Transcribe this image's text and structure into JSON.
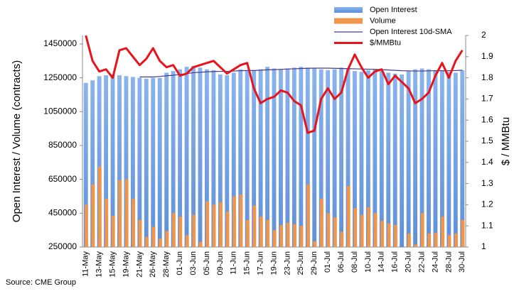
{
  "chart_data": {
    "type": "combo",
    "source": "Source: CME Group",
    "y_label": "Open Interest / Volume (contracts)",
    "y2_label": "$ / MMBtu",
    "categories": [
      "11-May",
      null,
      "13-May",
      null,
      "15-May",
      null,
      "19-May",
      null,
      "21-May",
      null,
      "26-May",
      null,
      "28-May",
      null,
      "01-Jun",
      null,
      "03-Jun",
      null,
      "05-Jun",
      null,
      "09-Jun",
      null,
      "11-Jun",
      null,
      "15-Jun",
      null,
      "17-Jun",
      null,
      "19-Jun",
      null,
      "23-Jun",
      null,
      "25-Jun",
      null,
      "29-Jun",
      null,
      "01-Jul",
      null,
      "06-Jul",
      null,
      "08-Jul",
      null,
      "10-Jul",
      null,
      "14-Jul",
      null,
      "16-Jul",
      null,
      "20-Jul",
      null,
      "22-Jul",
      null,
      "24-Jul",
      null,
      "28-Jul",
      null,
      "30-Jul"
    ],
    "ylim": [
      250000,
      1500000
    ],
    "yticks": [
      250000,
      450000,
      650000,
      850000,
      1050000,
      1250000,
      1450000
    ],
    "y2lim": [
      1,
      2
    ],
    "y2ticks": [
      1,
      1.1,
      1.2,
      1.3,
      1.4,
      1.5,
      1.6,
      1.7,
      1.8,
      1.9,
      2
    ],
    "series": [
      {
        "name": "Open Interest",
        "type": "bar",
        "color": "#6f9fe0",
        "values": [
          1220000,
          1235000,
          1260000,
          1265000,
          1270000,
          1265000,
          1260000,
          1255000,
          1250000,
          1245000,
          1250000,
          1250000,
          1280000,
          1290000,
          1300000,
          1315000,
          1320000,
          1310000,
          1300000,
          1295000,
          1270000,
          1265000,
          1280000,
          1300000,
          1290000,
          1295000,
          1300000,
          1315000,
          1305000,
          1300000,
          1305000,
          1310000,
          1315000,
          1310000,
          1305000,
          1300000,
          1295000,
          1300000,
          1310000,
          1305000,
          1290000,
          1285000,
          1295000,
          1300000,
          1290000,
          1280000,
          1275000,
          1270000,
          1290000,
          1300000,
          1305000,
          1300000,
          1295000,
          1290000,
          1285000,
          1280000,
          1295000
        ]
      },
      {
        "name": "Volume",
        "type": "bar",
        "color": "#f0954a",
        "values": [
          500000,
          620000,
          725000,
          535000,
          435000,
          645000,
          650000,
          535000,
          410000,
          310000,
          370000,
          300000,
          345000,
          450000,
          430000,
          320000,
          440000,
          280000,
          520000,
          500000,
          515000,
          460000,
          550000,
          560000,
          410000,
          495000,
          430000,
          410000,
          350000,
          380000,
          395000,
          385000,
          375000,
          620000,
          285000,
          535000,
          450000,
          425000,
          340000,
          610000,
          480000,
          440000,
          485000,
          450000,
          405000,
          390000,
          380000,
          250000,
          330000,
          265000,
          450000,
          330000,
          335000,
          430000,
          320000,
          330000,
          410000
        ]
      },
      {
        "name": "Open Interest 10d-SMA",
        "type": "line",
        "color": "#4b3a8c",
        "values": [
          null,
          null,
          null,
          null,
          null,
          null,
          null,
          null,
          1255000,
          1255000,
          1255000,
          1258000,
          1262000,
          1265000,
          1270000,
          1275000,
          1280000,
          1283000,
          1285000,
          1287000,
          1288000,
          1288000,
          1290000,
          1292000,
          1293000,
          1293000,
          1295000,
          1297000,
          1298000,
          1300000,
          1302000,
          1303000,
          1305000,
          1306000,
          1307000,
          1307000,
          1307000,
          1306000,
          1305000,
          1304000,
          1303000,
          1302000,
          1301000,
          1300000,
          1298000,
          1296000,
          1294000,
          1292000,
          1291000,
          1290000,
          1290000,
          1291000,
          1292000,
          1292000,
          1292000,
          1293000,
          1295000
        ]
      },
      {
        "name": "$/MMBtu",
        "type": "line",
        "axis": "y2",
        "color": "#e8141c",
        "values": [
          2,
          1.88,
          1.83,
          1.84,
          1.8,
          1.93,
          1.94,
          1.9,
          1.86,
          1.89,
          1.94,
          1.88,
          1.85,
          1.86,
          1.81,
          1.82,
          1.85,
          1.86,
          1.87,
          1.88,
          1.85,
          1.82,
          1.84,
          1.86,
          1.87,
          1.75,
          1.68,
          1.7,
          1.71,
          1.74,
          1.73,
          1.69,
          1.67,
          1.54,
          1.55,
          1.7,
          1.75,
          1.7,
          1.73,
          1.84,
          1.91,
          1.85,
          1.8,
          1.83,
          1.84,
          1.77,
          1.81,
          1.78,
          1.75,
          1.68,
          1.7,
          1.73,
          1.81,
          1.87,
          1.8,
          1.88,
          1.93
        ]
      }
    ]
  }
}
